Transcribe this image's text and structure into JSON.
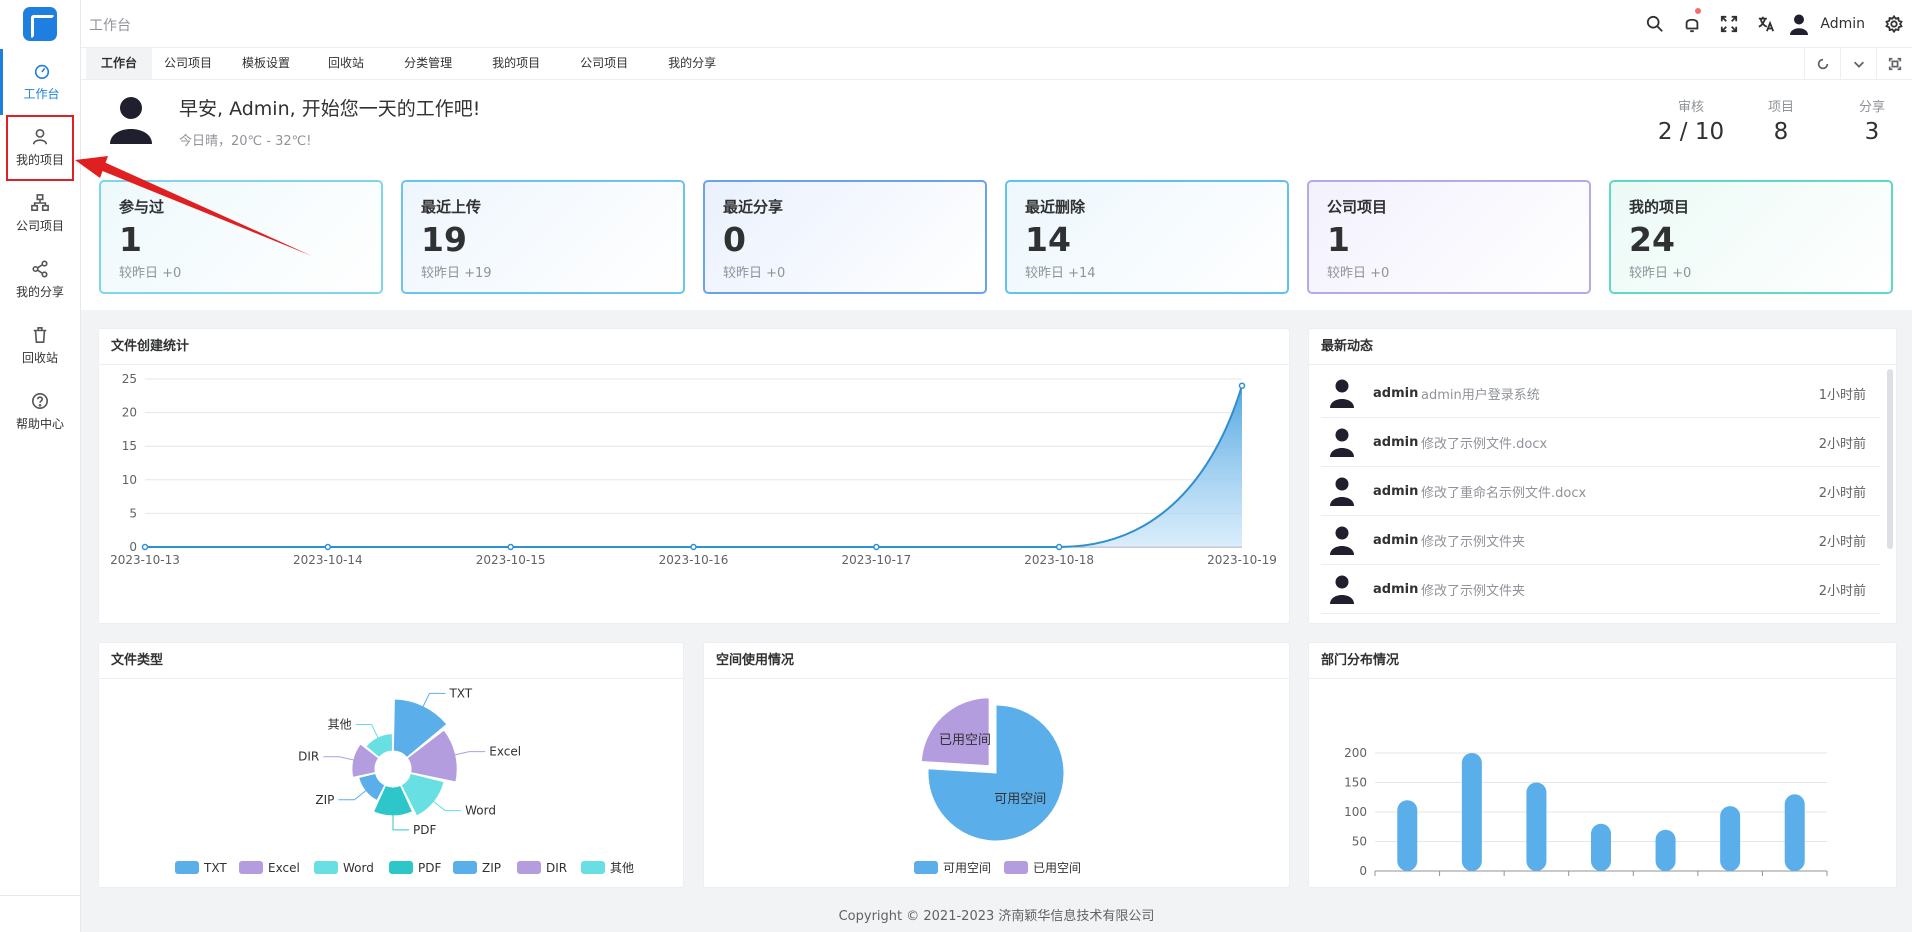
{
  "colors": {
    "primary": "#1e7fe0",
    "chart_blue": "#5aaeea",
    "chart_purple": "#b39ddf",
    "chart_cyan": "#67dfe3",
    "chart_teal": "#2ec7c9",
    "annotation_red": "#e02020"
  },
  "sidebar": {
    "items": [
      {
        "label": "工作台",
        "icon": "dashboard-icon"
      },
      {
        "label": "我的项目",
        "icon": "user-icon"
      },
      {
        "label": "公司项目",
        "icon": "org-chart-icon"
      },
      {
        "label": "我的分享",
        "icon": "share-icon"
      },
      {
        "label": "回收站",
        "icon": "trash-icon"
      },
      {
        "label": "帮助中心",
        "icon": "help-icon"
      }
    ]
  },
  "header": {
    "breadcrumb": "工作台",
    "username": "Admin"
  },
  "tabs": [
    "工作台",
    "公司项目",
    "模板设置",
    "回收站",
    "分类管理",
    "我的项目",
    "公司项目",
    "我的分享"
  ],
  "welcome": {
    "greeting": "早安, Admin, 开始您一天的工作吧!",
    "weather": "今日晴，20℃ - 32℃!",
    "stats": [
      {
        "label": "审核",
        "value": "2 / 10"
      },
      {
        "label": "项目",
        "value": "8"
      },
      {
        "label": "分享",
        "value": "3"
      }
    ]
  },
  "cards": [
    {
      "title": "参与过",
      "value": "1",
      "sub": "较昨日 +0",
      "border": "#7fd6e8",
      "bg": "#eef9fc"
    },
    {
      "title": "最近上传",
      "value": "19",
      "sub": "较昨日 +19",
      "border": "#6bc4ec",
      "bg": "#eef6fd"
    },
    {
      "title": "最近分享",
      "value": "0",
      "sub": "较昨日 +0",
      "border": "#6aa3ea",
      "bg": "#eaf1fd"
    },
    {
      "title": "最近删除",
      "value": "14",
      "sub": "较昨日 +14",
      "border": "#62c2ec",
      "bg": "#edf7fd"
    },
    {
      "title": "公司项目",
      "value": "1",
      "sub": "较昨日 +0",
      "border": "#b7a9e8",
      "bg": "#f3f1fd"
    },
    {
      "title": "我的项目",
      "value": "24",
      "sub": "较昨日 +0",
      "border": "#5fd9c4",
      "bg": "#ebfaf6"
    }
  ],
  "panels": {
    "file_stats": "文件创建统计",
    "feed": "最新动态",
    "file_types": "文件类型",
    "space": "空间使用情况",
    "dept": "部门分布情况"
  },
  "feed": [
    {
      "name": "admin",
      "msg": "admin用户登录系统",
      "time": "1小时前"
    },
    {
      "name": "admin",
      "msg": "修改了示例文件.docx",
      "time": "2小时前"
    },
    {
      "name": "admin",
      "msg": "修改了重命名示例文件.docx",
      "time": "2小时前"
    },
    {
      "name": "admin",
      "msg": "修改了示例文件夹",
      "time": "2小时前"
    },
    {
      "name": "admin",
      "msg": "修改了示例文件夹",
      "time": "2小时前"
    }
  ],
  "copyright": "Copyright © 2021-2023 济南颖华信息技术有限公司",
  "chart_data": [
    {
      "type": "area",
      "title": "文件创建统计",
      "x": [
        "2023-10-13",
        "2023-10-14",
        "2023-10-15",
        "2023-10-16",
        "2023-10-17",
        "2023-10-18",
        "2023-10-19"
      ],
      "values": [
        0,
        0,
        0,
        0,
        0,
        0,
        24
      ],
      "ylim": [
        0,
        25
      ],
      "yticks": [
        "0",
        "5",
        "10",
        "15",
        "20",
        "25"
      ],
      "grid": true
    },
    {
      "type": "pie",
      "title": "文件类型",
      "style": "rose",
      "categories": [
        "TXT",
        "Excel",
        "Word",
        "PDF",
        "ZIP",
        "DIR",
        "其他"
      ],
      "values": [
        9,
        8,
        6,
        5,
        3,
        4,
        3
      ],
      "colors": [
        "#5aaeea",
        "#b39ddf",
        "#67dfe3",
        "#2ec7c9",
        "#5aaeea",
        "#b39ddf",
        "#67dfe3"
      ],
      "legend": "bottom"
    },
    {
      "type": "pie",
      "title": "空间使用情况",
      "categories": [
        "可用空间",
        "已用空间"
      ],
      "values": [
        76,
        24
      ],
      "colors": [
        "#5aaeea",
        "#b39ddf"
      ],
      "legend": "bottom"
    },
    {
      "type": "bar",
      "title": "部门分布情况",
      "categories": [
        "",
        "",
        "",
        "",
        "",
        "",
        ""
      ],
      "values": [
        120,
        200,
        150,
        80,
        70,
        110,
        130
      ],
      "ylim": [
        0,
        200
      ],
      "yticks": [
        "0",
        "50",
        "100",
        "150",
        "200"
      ],
      "grid": true
    }
  ]
}
